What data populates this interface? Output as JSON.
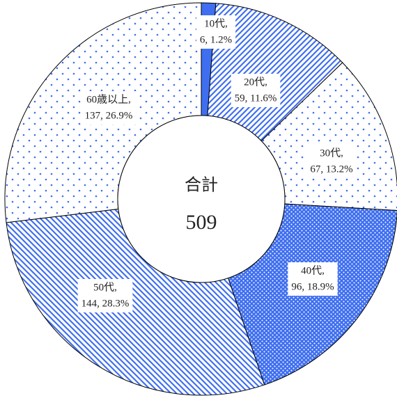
{
  "chart_data": {
    "type": "donut",
    "categories": [
      "10代",
      "20代",
      "30代",
      "40代",
      "50代",
      "60歳以上"
    ],
    "values": [
      6,
      59,
      67,
      96,
      144,
      137
    ],
    "value_labels": [
      "6, 1.2%",
      "59, 11.6%",
      "67, 13.2%",
      "96, 18.9%",
      "144, 28.3%",
      "137, 26.9%"
    ],
    "color": "#3f6ff0",
    "patterns": [
      "solid",
      "stripes-up",
      "dots-sparse",
      "dots-dense",
      "stripes-down",
      "dots-sparse"
    ],
    "center_title": "合計",
    "center_value": "509"
  }
}
